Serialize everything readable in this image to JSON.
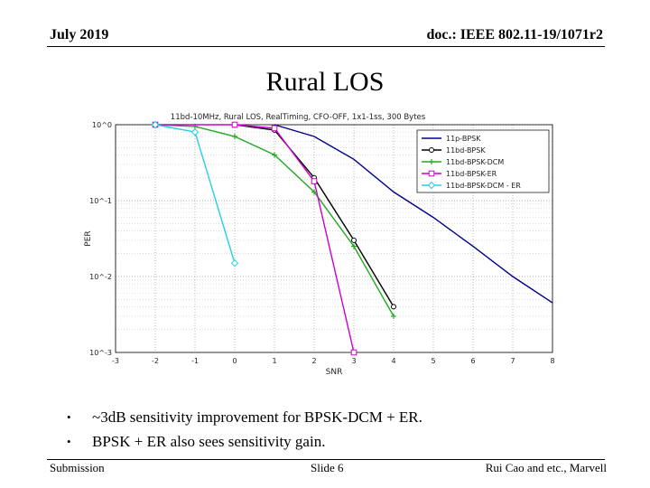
{
  "header": {
    "date": "July 2019",
    "doc_id": "doc.: IEEE 802.11-19/1071r2"
  },
  "slide_title": "Rural LOS",
  "bullets": [
    "~3dB sensitivity improvement for BPSK-DCM + ER.",
    "BPSK + ER also sees sensitivity gain."
  ],
  "footer": {
    "left": "Submission",
    "center": "Slide 6",
    "right": "Rui Cao and etc., Marvell"
  },
  "chart_data": {
    "type": "line",
    "title": "11bd-10MHz, Rural LOS, RealTiming, CFO-OFF, 1x1-1ss, 300 Bytes",
    "xlabel": "SNR",
    "ylabel": "PER",
    "yscale": "log",
    "xlim": [
      -3,
      8
    ],
    "ylim": [
      0.001,
      1
    ],
    "xticks": [
      "-3",
      "-2",
      "-1",
      "0",
      "1",
      "2",
      "3",
      "4",
      "5",
      "6",
      "7",
      "8"
    ],
    "yticks": [
      "10^0",
      "10^-1",
      "10^-2",
      "10^-3"
    ],
    "legend_position": "top-right",
    "series": [
      {
        "name": "11p-BPSK",
        "color": "#00008b",
        "marker": "none",
        "x": [
          1,
          2,
          3,
          4,
          5,
          6,
          7,
          8
        ],
        "y": [
          1,
          0.7,
          0.35,
          0.13,
          0.06,
          0.025,
          0.01,
          0.0045
        ]
      },
      {
        "name": "11bd-BPSK",
        "color": "#000000",
        "marker": "circle",
        "x": [
          0,
          1,
          2,
          3,
          4
        ],
        "y": [
          1,
          0.85,
          0.2,
          0.03,
          0.004
        ]
      },
      {
        "name": "11bd-BPSK-DCM",
        "color": "#22aa22",
        "marker": "plus",
        "x": [
          -2,
          -1,
          0,
          1,
          2,
          3,
          4
        ],
        "y": [
          1,
          0.95,
          0.7,
          0.4,
          0.13,
          0.025,
          0.003
        ]
      },
      {
        "name": "11bd-BPSK-ER",
        "color": "#cc00cc",
        "marker": "square",
        "x": [
          -2,
          0,
          1,
          2,
          3
        ],
        "y": [
          1,
          1,
          0.9,
          0.18,
          0.001
        ]
      },
      {
        "name": "11bd-BPSK-DCM - ER",
        "color": "#22cfe8",
        "marker": "diamond",
        "x": [
          -2,
          -1,
          0
        ],
        "y": [
          1,
          0.8,
          0.015
        ]
      }
    ]
  }
}
